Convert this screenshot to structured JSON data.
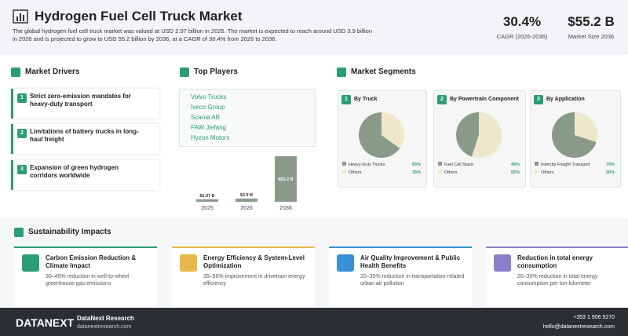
{
  "header": {
    "title": "Hydrogen Fuel Cell Truck Market",
    "description": "The global hydrogen fuel cell truck market was valued at USD 2.97 billion in 2025. The market is expected to reach around USD 3.9 billion in 2026 and is projected to grow to USD 55.2 billion by 2036, at a CAGR of 30.4% from 2026 to 2036.",
    "stats": [
      {
        "value": "30.4%",
        "label": "CAGR (2026-2036)"
      },
      {
        "value": "$55.2 B",
        "label": "Market Size 2036"
      }
    ]
  },
  "drivers": {
    "title": "Market Drivers",
    "items": [
      {
        "number": "1",
        "text": "Strict zero-emission mandates for heavy-duty transport"
      },
      {
        "number": "2",
        "text": "Limitations of battery trucks in long-haul freight"
      },
      {
        "number": "3",
        "text": "Expansion of green hydrogen corridors worldwide"
      }
    ]
  },
  "players": {
    "title": "Top Players",
    "items": [
      "Volvo Trucks",
      "Iveco Group",
      "Scania AB",
      "FAW Jiefang",
      "Hyzon Motors"
    ],
    "chart": {
      "type": "bar",
      "categories": [
        "2025",
        "2026",
        "2036"
      ],
      "values": [
        2.97,
        3.9,
        55.2
      ],
      "value_labels": [
        "$2.97 B",
        "$3.9 B",
        "$55.2 B"
      ],
      "color": "#8a9a8a"
    }
  },
  "segments": {
    "title": "Market Segments",
    "cards": [
      {
        "number": "1",
        "title": "By Truck",
        "chart": {
          "type": "pie",
          "categories": [
            "Heavy-Duty Trucks",
            "Others"
          ],
          "values": [
            65,
            35
          ],
          "value_labels": [
            "65%",
            "35%"
          ],
          "colors": [
            "#8a9a8a",
            "#efe7c9"
          ]
        }
      },
      {
        "number": "2",
        "title": "By Powertrain Component",
        "chart": {
          "type": "pie",
          "categories": [
            "Fuel Cell Stack",
            "Others"
          ],
          "values": [
            45,
            55
          ],
          "value_labels": [
            "45%",
            "55%"
          ],
          "colors": [
            "#8a9a8a",
            "#efe7c9"
          ]
        }
      },
      {
        "number": "3",
        "title": "By Application",
        "chart": {
          "type": "pie",
          "categories": [
            "Intercity Freight Transport",
            "Others"
          ],
          "values": [
            70,
            30
          ],
          "value_labels": [
            "70%",
            "30%"
          ],
          "colors": [
            "#8a9a8a",
            "#efe7c9"
          ]
        }
      }
    ]
  },
  "sustainability": {
    "title": "Sustainability Impacts",
    "items": [
      {
        "title": "Carbon Emission Reduction & Climate Impact",
        "text": "30–45% reduction in well-to-wheel greenhouse gas emissions"
      },
      {
        "title": "Energy Efficiency & System-Level Optimization",
        "text": "35–50% improvement in drivetrain energy efficiency"
      },
      {
        "title": "Air Quality Improvement & Public Health Benefits",
        "text": "20–35% reduction in transportation-related urban air pollution"
      },
      {
        "title": "Reduction in total energy consumption",
        "text": "20–30% reduction in total energy consumption per ton-kilometer"
      }
    ]
  },
  "footer": {
    "logo": "DATANEXT",
    "company": "DataNext Research",
    "website": "datanextresearch.com",
    "phone": "+353 1 906 9270",
    "email": "hello@datanextresearch.com"
  }
}
